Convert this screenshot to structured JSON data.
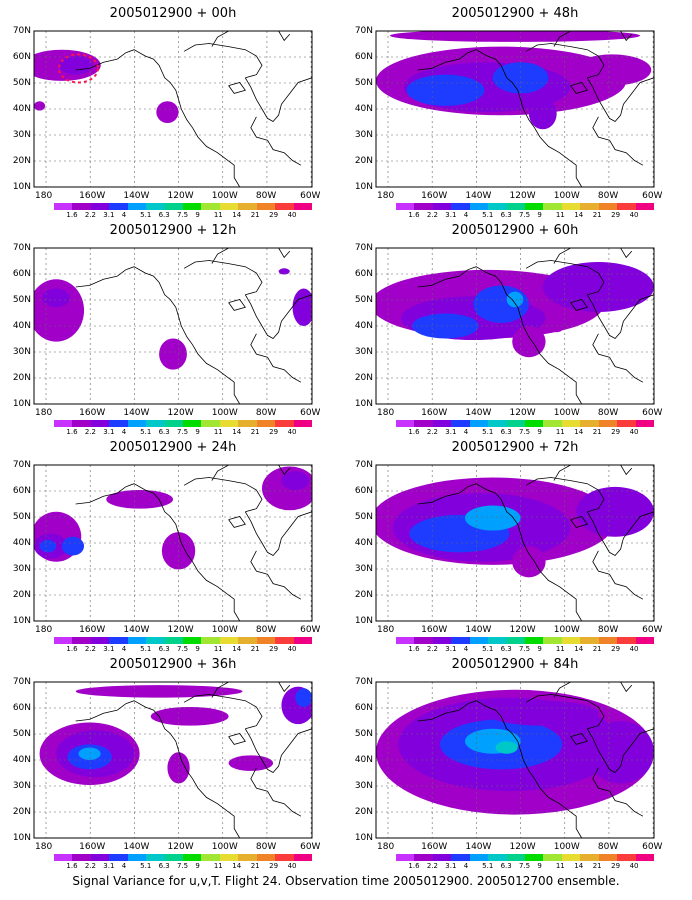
{
  "figure": {
    "caption": "Signal Variance for u,v,T. Flight 24. Observation time 2005012900. 2005012700 ensemble."
  },
  "lat_labels": [
    "70N",
    "60N",
    "50N",
    "40N",
    "30N",
    "20N",
    "10N"
  ],
  "lon_labels": [
    "180",
    "160W",
    "140W",
    "120W",
    "100W",
    "80W",
    "60W"
  ],
  "colorbar": {
    "levels": [
      "1.6",
      "2.2",
      "3.1",
      "4",
      "5.1",
      "6.3",
      "7.5",
      "9",
      "11",
      "14",
      "21",
      "29",
      "40"
    ],
    "colors": [
      "#a000c8",
      "#8200dc",
      "#1e3cff",
      "#00a0ff",
      "#00c8c8",
      "#00d28c",
      "#00dc00",
      "#a0e632",
      "#e6dc32",
      "#e6af2d",
      "#f08228",
      "#fa3c3c",
      "#f00082"
    ]
  },
  "panels": [
    {
      "title": "2005012900 + 00h"
    },
    {
      "title": "2005012900 + 48h"
    },
    {
      "title": "2005012900 + 12h"
    },
    {
      "title": "2005012900 + 60h"
    },
    {
      "title": "2005012900 + 24h"
    },
    {
      "title": "2005012900 + 72h"
    },
    {
      "title": "2005012900 + 36h"
    },
    {
      "title": "2005012900 + 84h"
    }
  ]
}
